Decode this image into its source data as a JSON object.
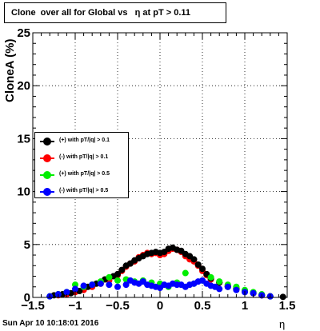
{
  "title": "Clone  over all for Global vs   η at pT > 0.11",
  "footer": "Sun Apr 10 10:18:01 2016",
  "chart_data": {
    "type": "scatter",
    "xlabel": "η",
    "ylabel": "CloneA (%)",
    "xlim": [
      -1.5,
      1.5
    ],
    "ylim": [
      0,
      25
    ],
    "xticks": [
      "−1.5",
      "−1",
      "−0.5",
      "0",
      "0.5",
      "1",
      "1.5"
    ],
    "yticks": [
      "0",
      "5",
      "10",
      "15",
      "20",
      "25"
    ],
    "grid": true,
    "legend_position": "left-middle",
    "series": [
      {
        "name": "(+) with pT/|q| > 0.1",
        "color": "#000000",
        "points": [
          [
            -1.25,
            0.2
          ],
          [
            -1.15,
            0.3
          ],
          [
            -1.05,
            0.4
          ],
          [
            -0.95,
            0.6
          ],
          [
            -0.85,
            1.0
          ],
          [
            -0.75,
            1.3
          ],
          [
            -0.65,
            1.7
          ],
          [
            -0.55,
            2.0
          ],
          [
            -0.5,
            2.2
          ],
          [
            -0.45,
            2.6
          ],
          [
            -0.4,
            3.0
          ],
          [
            -0.35,
            3.2
          ],
          [
            -0.3,
            3.5
          ],
          [
            -0.25,
            3.7
          ],
          [
            -0.2,
            3.9
          ],
          [
            -0.15,
            4.1
          ],
          [
            -0.1,
            4.2
          ],
          [
            -0.05,
            4.3
          ],
          [
            0.0,
            4.2
          ],
          [
            0.05,
            4.3
          ],
          [
            0.1,
            4.6
          ],
          [
            0.15,
            4.7
          ],
          [
            0.2,
            4.5
          ],
          [
            0.25,
            4.4
          ],
          [
            0.3,
            4.1
          ],
          [
            0.35,
            3.9
          ],
          [
            0.4,
            3.6
          ],
          [
            0.45,
            3.1
          ],
          [
            0.5,
            2.7
          ],
          [
            0.55,
            2.2
          ],
          [
            0.6,
            1.8
          ],
          [
            0.7,
            1.4
          ],
          [
            0.8,
            1.0
          ],
          [
            0.9,
            0.8
          ],
          [
            1.0,
            0.6
          ],
          [
            1.1,
            0.4
          ],
          [
            1.2,
            0.2
          ],
          [
            1.3,
            0.1
          ],
          [
            1.45,
            0.05
          ]
        ]
      },
      {
        "name": "(-) with pT/|q| > 0.1",
        "color": "#ff0000",
        "points": [
          [
            -1.2,
            0.2
          ],
          [
            -1.1,
            0.3
          ],
          [
            -1.0,
            0.5
          ],
          [
            -0.9,
            0.7
          ],
          [
            -0.8,
            1.0
          ],
          [
            -0.7,
            1.3
          ],
          [
            -0.6,
            1.6
          ],
          [
            -0.5,
            2.1
          ],
          [
            -0.45,
            2.5
          ],
          [
            -0.4,
            2.9
          ],
          [
            -0.35,
            3.2
          ],
          [
            -0.3,
            3.4
          ],
          [
            -0.25,
            3.8
          ],
          [
            -0.2,
            4.0
          ],
          [
            -0.15,
            4.2
          ],
          [
            -0.1,
            4.1
          ],
          [
            -0.05,
            4.2
          ],
          [
            0.0,
            4.0
          ],
          [
            0.05,
            4.1
          ],
          [
            0.1,
            4.4
          ],
          [
            0.15,
            4.6
          ],
          [
            0.2,
            4.5
          ],
          [
            0.25,
            4.3
          ],
          [
            0.3,
            3.9
          ],
          [
            0.35,
            3.6
          ],
          [
            0.4,
            3.4
          ],
          [
            0.45,
            3.0
          ],
          [
            0.5,
            2.5
          ],
          [
            0.55,
            2.1
          ],
          [
            0.6,
            1.7
          ],
          [
            0.7,
            1.4
          ],
          [
            0.8,
            1.1
          ],
          [
            0.9,
            0.9
          ],
          [
            1.0,
            0.6
          ],
          [
            1.1,
            0.4
          ],
          [
            1.2,
            0.2
          ],
          [
            1.3,
            0.1
          ]
        ]
      },
      {
        "name": "(+) with pT/|q| > 0.5",
        "color": "#00ee00",
        "points": [
          [
            -1.3,
            0.1
          ],
          [
            -1.2,
            0.3
          ],
          [
            -1.1,
            0.5
          ],
          [
            -1.0,
            1.2
          ],
          [
            -0.9,
            1.0
          ],
          [
            -0.8,
            1.2
          ],
          [
            -0.7,
            1.5
          ],
          [
            -0.6,
            1.9
          ],
          [
            -0.5,
            1.6
          ],
          [
            -0.4,
            1.7
          ],
          [
            -0.3,
            1.5
          ],
          [
            -0.2,
            1.6
          ],
          [
            -0.1,
            1.4
          ],
          [
            0.0,
            1.3
          ],
          [
            0.1,
            1.0
          ],
          [
            0.2,
            1.4
          ],
          [
            0.3,
            2.3
          ],
          [
            0.4,
            1.3
          ],
          [
            0.5,
            1.6
          ],
          [
            0.6,
            1.9
          ],
          [
            0.7,
            1.5
          ],
          [
            0.8,
            1.2
          ],
          [
            0.9,
            1.0
          ],
          [
            1.0,
            0.7
          ],
          [
            1.1,
            0.5
          ],
          [
            1.2,
            0.3
          ],
          [
            1.3,
            0.1
          ]
        ]
      },
      {
        "name": "(-) with pT/|q| > 0.5",
        "color": "#0000ff",
        "points": [
          [
            -1.3,
            0.1
          ],
          [
            -1.2,
            0.3
          ],
          [
            -1.1,
            0.5
          ],
          [
            -1.0,
            0.8
          ],
          [
            -0.9,
            1.1
          ],
          [
            -0.8,
            1.2
          ],
          [
            -0.7,
            1.3
          ],
          [
            -0.6,
            1.2
          ],
          [
            -0.5,
            1.0
          ],
          [
            -0.4,
            1.2
          ],
          [
            -0.35,
            1.6
          ],
          [
            -0.3,
            1.4
          ],
          [
            -0.25,
            1.3
          ],
          [
            -0.2,
            1.5
          ],
          [
            -0.15,
            1.2
          ],
          [
            -0.1,
            1.1
          ],
          [
            -0.05,
            1.0
          ],
          [
            0.0,
            0.9
          ],
          [
            0.05,
            1.2
          ],
          [
            0.1,
            1.1
          ],
          [
            0.15,
            1.3
          ],
          [
            0.2,
            1.2
          ],
          [
            0.25,
            1.2
          ],
          [
            0.3,
            1.0
          ],
          [
            0.35,
            1.2
          ],
          [
            0.4,
            1.3
          ],
          [
            0.45,
            1.5
          ],
          [
            0.5,
            1.6
          ],
          [
            0.55,
            1.3
          ],
          [
            0.6,
            1.1
          ],
          [
            0.65,
            1.0
          ],
          [
            0.7,
            0.8
          ],
          [
            0.8,
            1.0
          ],
          [
            0.9,
            0.7
          ],
          [
            1.0,
            0.5
          ],
          [
            1.1,
            0.4
          ],
          [
            1.2,
            0.2
          ],
          [
            1.3,
            0.1
          ]
        ]
      }
    ]
  }
}
